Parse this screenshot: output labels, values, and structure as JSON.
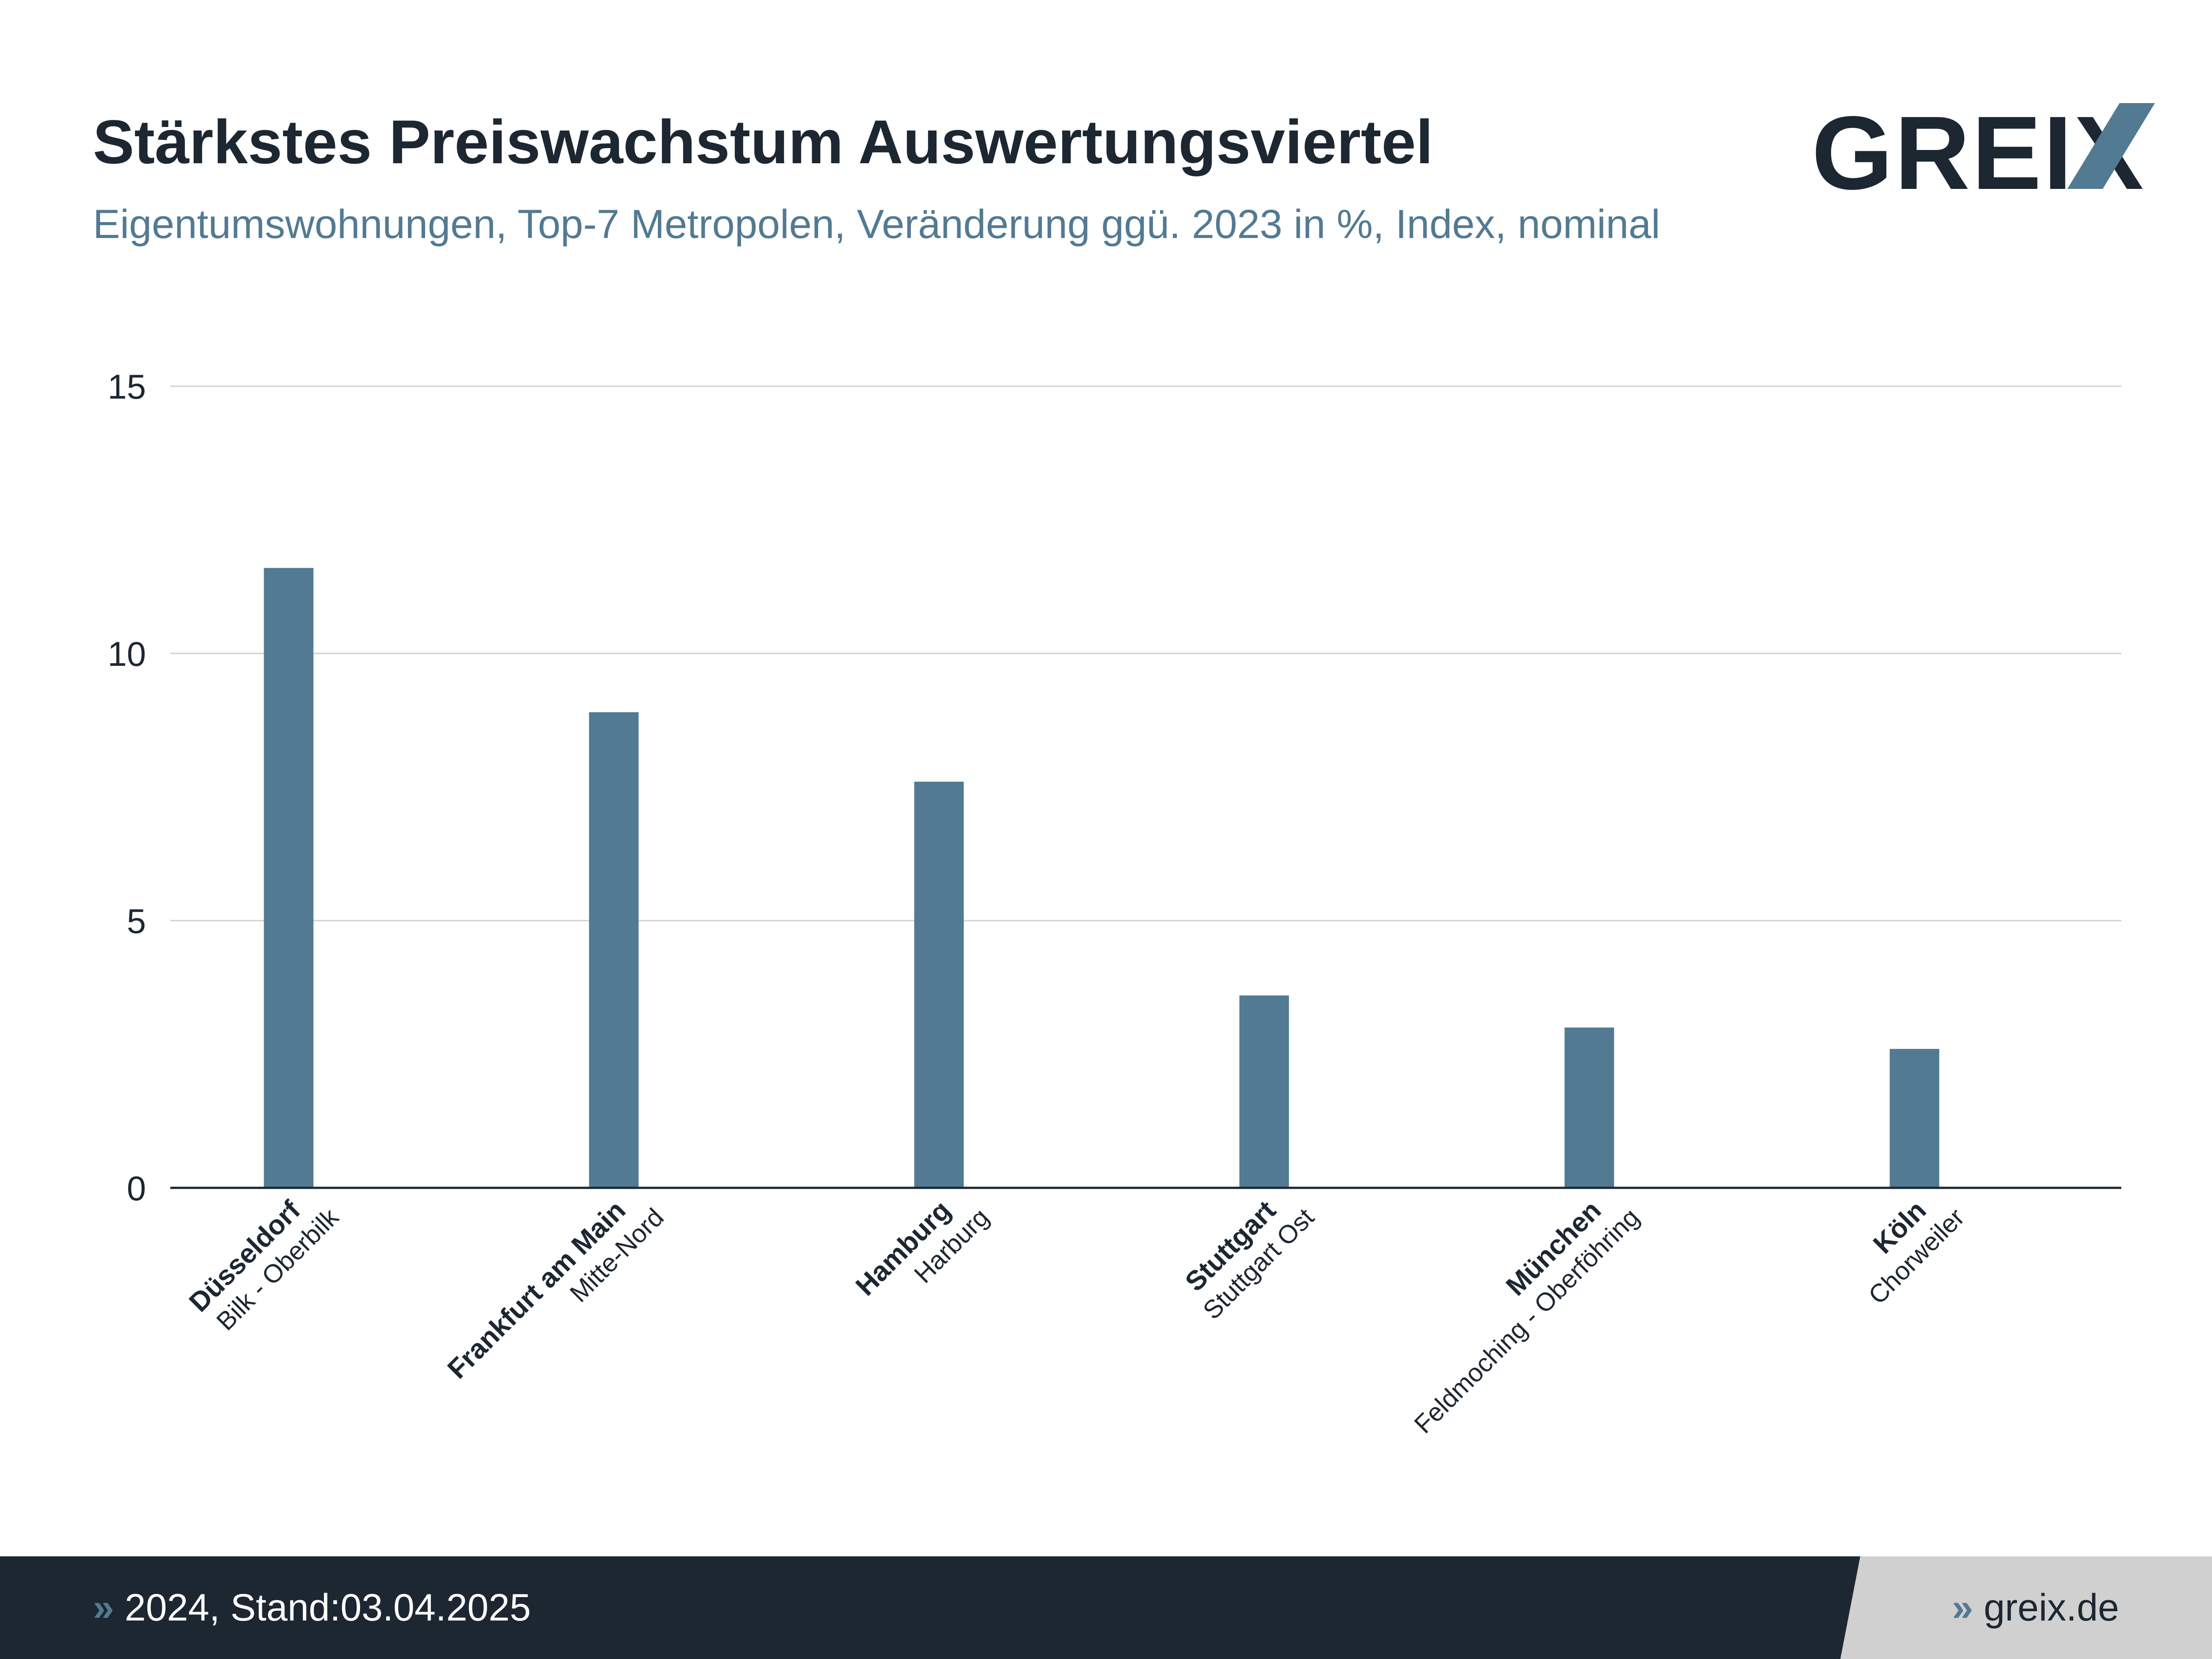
{
  "header": {
    "title": "Stärkstes Preiswachstum Auswertungsviertel",
    "subtitle": "Eigentumswohnungen, Top-7 Metropolen, Veränderung ggü. 2023 in %, Index, nominal",
    "logo_text": "GREIX"
  },
  "footer": {
    "left_marker": "»",
    "left_text": "2024, Stand:03.04.2025",
    "right_marker": "»",
    "right_text": "greix.de"
  },
  "colors": {
    "bar": "#527a92",
    "title": "#1d2732",
    "subtitle": "#527a92",
    "footer_dark": "#1d2732",
    "footer_light": "#d0d0d0",
    "grid": "#d0d0d0",
    "axis": "#1d2732"
  },
  "chart_data": {
    "type": "bar",
    "title": "Stärkstes Preiswachstum Auswertungsviertel",
    "subtitle": "Eigentumswohnungen, Top-7 Metropolen, Veränderung ggü. 2023 in %, Index, nominal",
    "xlabel": "",
    "ylabel": "",
    "ylim": [
      0,
      15
    ],
    "yticks": [
      0,
      5,
      10,
      15
    ],
    "ytick_labels": [
      "0",
      "5",
      "10",
      "15"
    ],
    "grid": true,
    "legend": "none",
    "categories": [
      {
        "city": "Düsseldorf",
        "district": "Bilk - Oberbilk"
      },
      {
        "city": "Frankfurt am Main",
        "district": "Mitte-Nord"
      },
      {
        "city": "Hamburg",
        "district": "Harburg"
      },
      {
        "city": "Stuttgart",
        "district": "Stuttgart Ost"
      },
      {
        "city": "München",
        "district": "Feldmoching - Oberföhring"
      },
      {
        "city": "Köln",
        "district": "Chorweiler"
      }
    ],
    "values": [
      11.6,
      8.9,
      7.6,
      3.6,
      3.0,
      2.6
    ]
  }
}
